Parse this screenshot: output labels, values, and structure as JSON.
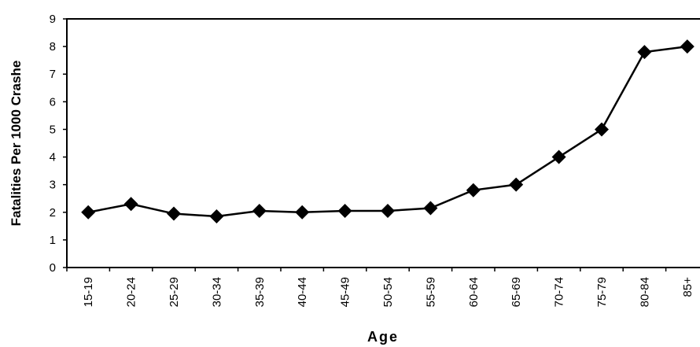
{
  "chart_data": {
    "type": "line",
    "y_label": "Fatalities Per 1000 Crashe",
    "x_label": "Age",
    "categories": [
      "15-19",
      "20-24",
      "25-29",
      "30-34",
      "35-39",
      "40-44",
      "45-49",
      "50-54",
      "55-59",
      "60-64",
      "65-69",
      "70-74",
      "75-79",
      "80-84",
      "85+"
    ],
    "series": [
      {
        "color": "#000000",
        "values": [
          2.0,
          2.3,
          1.95,
          1.85,
          2.05,
          2.0,
          2.05,
          2.05,
          2.15,
          2.8,
          3.0,
          4.0,
          5.0,
          7.8,
          8.0
        ]
      }
    ],
    "ylim": [
      0,
      9
    ],
    "yticks": [
      0,
      1,
      2,
      3,
      4,
      5,
      6,
      7,
      8,
      9
    ],
    "grid": false
  }
}
